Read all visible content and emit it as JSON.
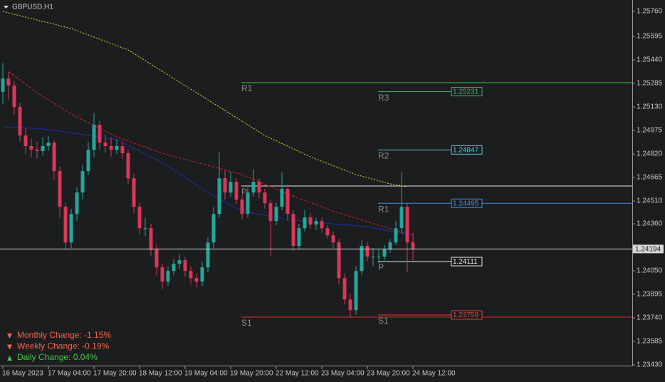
{
  "chart_data": {
    "type": "candlestick",
    "title": "GBPUSD,H1",
    "colors": {
      "up": "#26a69a",
      "down": "#d9385a",
      "background": "#1c1d1f"
    },
    "xlim": [
      -0.5,
      110.5
    ],
    "xticks": [
      {
        "value": 0,
        "label": "16 May 2023"
      },
      {
        "value": 8,
        "label": "17 May 04:00"
      },
      {
        "value": 16,
        "label": "17 May 20:00"
      },
      {
        "value": 24,
        "label": "18 May 12:00"
      },
      {
        "value": 32,
        "label": "19 May 04:00"
      },
      {
        "value": 40,
        "label": "19 May 20:00"
      },
      {
        "value": 48,
        "label": "22 May 12:00"
      },
      {
        "value": 56,
        "label": "23 May 04:00"
      },
      {
        "value": 64,
        "label": "23 May 20:00"
      },
      {
        "value": 72,
        "label": "24 May 12:00"
      }
    ],
    "ylim": [
      1.2343,
      1.25835
    ],
    "yticks": [
      {
        "value": 1.2576,
        "label": "1.25760"
      },
      {
        "value": 1.25595,
        "label": "1.25595"
      },
      {
        "value": 1.2544,
        "label": "1.25440"
      },
      {
        "value": 1.25285,
        "label": "1.25285"
      },
      {
        "value": 1.2513,
        "label": "1.25130"
      },
      {
        "value": 1.24975,
        "label": "1.24975"
      },
      {
        "value": 1.2482,
        "label": "1.24820"
      },
      {
        "value": 1.24665,
        "label": "1.24665"
      },
      {
        "value": 1.2451,
        "label": "1.24510"
      },
      {
        "value": 1.2436,
        "label": "1.24360"
      },
      {
        "value": 1.2405,
        "label": "1.24050"
      },
      {
        "value": 1.23895,
        "label": "1.23895"
      },
      {
        "value": 1.2374,
        "label": "1.23740"
      },
      {
        "value": 1.23585,
        "label": "1.23585"
      },
      {
        "value": 1.2343,
        "label": "1.23430"
      }
    ],
    "candles": [
      [
        1.2523,
        1.2542,
        1.2515,
        1.25318
      ],
      [
        1.25318,
        1.2536,
        1.2518,
        1.25271
      ],
      [
        1.25271,
        1.253,
        1.2508,
        1.2513
      ],
      [
        1.2513,
        1.2516,
        1.249,
        1.24942
      ],
      [
        1.24942,
        1.2499,
        1.2482,
        1.24872
      ],
      [
        1.24872,
        1.2492,
        1.248,
        1.24848
      ],
      [
        1.24848,
        1.249,
        1.2479,
        1.24839
      ],
      [
        1.24839,
        1.2493,
        1.2481,
        1.24872
      ],
      [
        1.24872,
        1.2494,
        1.2484,
        1.24895
      ],
      [
        1.24895,
        1.2491,
        1.2465,
        1.24707
      ],
      [
        1.24707,
        1.2474,
        1.244,
        1.24472
      ],
      [
        1.24472,
        1.245,
        1.2419,
        1.24237
      ],
      [
        1.24237,
        1.2446,
        1.242,
        1.24425
      ],
      [
        1.24425,
        1.246,
        1.2438,
        1.24566
      ],
      [
        1.24566,
        1.2475,
        1.2452,
        1.24707
      ],
      [
        1.24707,
        1.249,
        1.2468,
        1.24848
      ],
      [
        1.24848,
        1.2509,
        1.248,
        1.25013
      ],
      [
        1.25013,
        1.2504,
        1.2485,
        1.24895
      ],
      [
        1.24895,
        1.2495,
        1.2483,
        1.24872
      ],
      [
        1.24872,
        1.2493,
        1.248,
        1.24848
      ],
      [
        1.24848,
        1.2492,
        1.2482,
        1.24872
      ],
      [
        1.24872,
        1.249,
        1.2479,
        1.24825
      ],
      [
        1.24825,
        1.2485,
        1.2462,
        1.2466
      ],
      [
        1.2466,
        1.2469,
        1.2443,
        1.24472
      ],
      [
        1.24472,
        1.245,
        1.2429,
        1.24331
      ],
      [
        1.24331,
        1.244,
        1.2428,
        1.24331
      ],
      [
        1.24331,
        1.2436,
        1.2415,
        1.2419
      ],
      [
        1.2419,
        1.2422,
        1.2402,
        1.24073
      ],
      [
        1.24073,
        1.241,
        1.2393,
        1.23979
      ],
      [
        1.23979,
        1.2408,
        1.2395,
        1.24049
      ],
      [
        1.24049,
        1.2413,
        1.2402,
        1.24096
      ],
      [
        1.24096,
        1.2416,
        1.2406,
        1.2412
      ],
      [
        1.2412,
        1.2414,
        1.2401,
        1.24049
      ],
      [
        1.24049,
        1.2408,
        1.2396,
        1.24002
      ],
      [
        1.24002,
        1.2403,
        1.2394,
        1.23979
      ],
      [
        1.23979,
        1.2411,
        1.2395,
        1.24073
      ],
      [
        1.24073,
        1.2427,
        1.2404,
        1.24237
      ],
      [
        1.24237,
        1.2447,
        1.242,
        1.24425
      ],
      [
        1.24425,
        1.2483,
        1.244,
        1.2466
      ],
      [
        1.2466,
        1.2471,
        1.2452,
        1.24566
      ],
      [
        1.24566,
        1.247,
        1.2454,
        1.24637
      ],
      [
        1.24637,
        1.2466,
        1.2449,
        1.24519
      ],
      [
        1.24519,
        1.2455,
        1.2439,
        1.24425
      ],
      [
        1.24425,
        1.246,
        1.244,
        1.24566
      ],
      [
        1.24566,
        1.2472,
        1.2454,
        1.24637
      ],
      [
        1.24637,
        1.2466,
        1.2453,
        1.24566
      ],
      [
        1.24566,
        1.2459,
        1.2446,
        1.24496
      ],
      [
        1.24496,
        1.2452,
        1.2415,
        1.24378
      ],
      [
        1.24378,
        1.245,
        1.2435,
        1.24472
      ],
      [
        1.24472,
        1.247,
        1.2445,
        1.2459
      ],
      [
        1.2459,
        1.2462,
        1.2438,
        1.24425
      ],
      [
        1.24425,
        1.2445,
        1.2418,
        1.24214
      ],
      [
        1.24214,
        1.2436,
        1.2419,
        1.24331
      ],
      [
        1.24331,
        1.2445,
        1.2431,
        1.24402
      ],
      [
        1.24402,
        1.2443,
        1.2433,
        1.24355
      ],
      [
        1.24355,
        1.244,
        1.2432,
        1.24378
      ],
      [
        1.24378,
        1.244,
        1.243,
        1.24331
      ],
      [
        1.24331,
        1.2435,
        1.2426,
        1.24284
      ],
      [
        1.24284,
        1.2431,
        1.242,
        1.24237
      ],
      [
        1.24237,
        1.2426,
        1.2396,
        1.24002
      ],
      [
        1.24002,
        1.2403,
        1.2383,
        1.23861
      ],
      [
        1.23861,
        1.239,
        1.2374,
        1.23791
      ],
      [
        1.23791,
        1.2408,
        1.2376,
        1.24049
      ],
      [
        1.24049,
        1.2425,
        1.2402,
        1.24214
      ],
      [
        1.24214,
        1.2424,
        1.2411,
        1.24143
      ],
      [
        1.24143,
        1.242,
        1.2408,
        1.24143
      ],
      [
        1.24143,
        1.2419,
        1.241,
        1.24143
      ],
      [
        1.24143,
        1.2422,
        1.2412,
        1.2419
      ],
      [
        1.2419,
        1.2426,
        1.2417,
        1.24237
      ],
      [
        1.24237,
        1.2438,
        1.2422,
        1.24331
      ],
      [
        1.24331,
        1.247,
        1.243,
        1.24472
      ],
      [
        1.24472,
        1.245,
        1.2404,
        1.24237
      ],
      [
        1.24237,
        1.243,
        1.2412,
        1.24194
      ]
    ],
    "moving_averages": [
      {
        "color": "#e8e020",
        "style": "dotted",
        "x": [
          0,
          12,
          22,
          30,
          38,
          46,
          54,
          62,
          68,
          71
        ],
        "values": [
          1.2576,
          1.25647,
          1.25506,
          1.25318,
          1.2513,
          1.24942,
          1.24801,
          1.24684,
          1.24623,
          1.24604
        ]
      },
      {
        "color": "#c0262b",
        "style": "dashed",
        "x": [
          1,
          6,
          12,
          20,
          28,
          36,
          42,
          50,
          58,
          66,
          72
        ],
        "values": [
          1.25365,
          1.25224,
          1.25083,
          1.24933,
          1.24825,
          1.24745,
          1.24684,
          1.24557,
          1.24444,
          1.2435,
          1.24284
        ]
      },
      {
        "color": "#1c2fa8",
        "style": "solid",
        "x": [
          0,
          6,
          12,
          20,
          28,
          36,
          42,
          50,
          58,
          64,
          72
        ],
        "values": [
          1.24999,
          1.24989,
          1.24961,
          1.24914,
          1.24764,
          1.24566,
          1.24444,
          1.24388,
          1.24359,
          1.24341,
          1.24284
        ]
      }
    ],
    "weekly_levels": [
      {
        "label": "R1",
        "value": 1.2529,
        "color": "#3cc83c"
      },
      {
        "label": "P",
        "value": 1.24609,
        "color": "#e6e6e6"
      },
      {
        "label": "S1",
        "value": 1.23745,
        "color": "#d8302c"
      }
    ],
    "daily_levels": [
      {
        "label": "R3",
        "value": 1.25231,
        "color": "#3cb371"
      },
      {
        "label": "R2",
        "value": 1.24847,
        "color": "#5cc6d8"
      },
      {
        "label": "R1",
        "value": 1.24495,
        "color": "#3a8ee6",
        "extend_right": true
      },
      {
        "label": "P",
        "value": 1.24111,
        "color": "#e6e6e6"
      },
      {
        "label": "S1",
        "value": 1.23759,
        "color": "#e0413b"
      }
    ],
    "current_price": 1.24194,
    "stats": [
      {
        "text": "Monthly Change: -1.15%",
        "direction": "down",
        "color": "#f0644a"
      },
      {
        "text": "Weekly Change: -0.19%",
        "direction": "down",
        "color": "#f0644a"
      },
      {
        "text": "Daily Change: 0.04%",
        "direction": "up",
        "color": "#3ecb3e"
      }
    ]
  }
}
